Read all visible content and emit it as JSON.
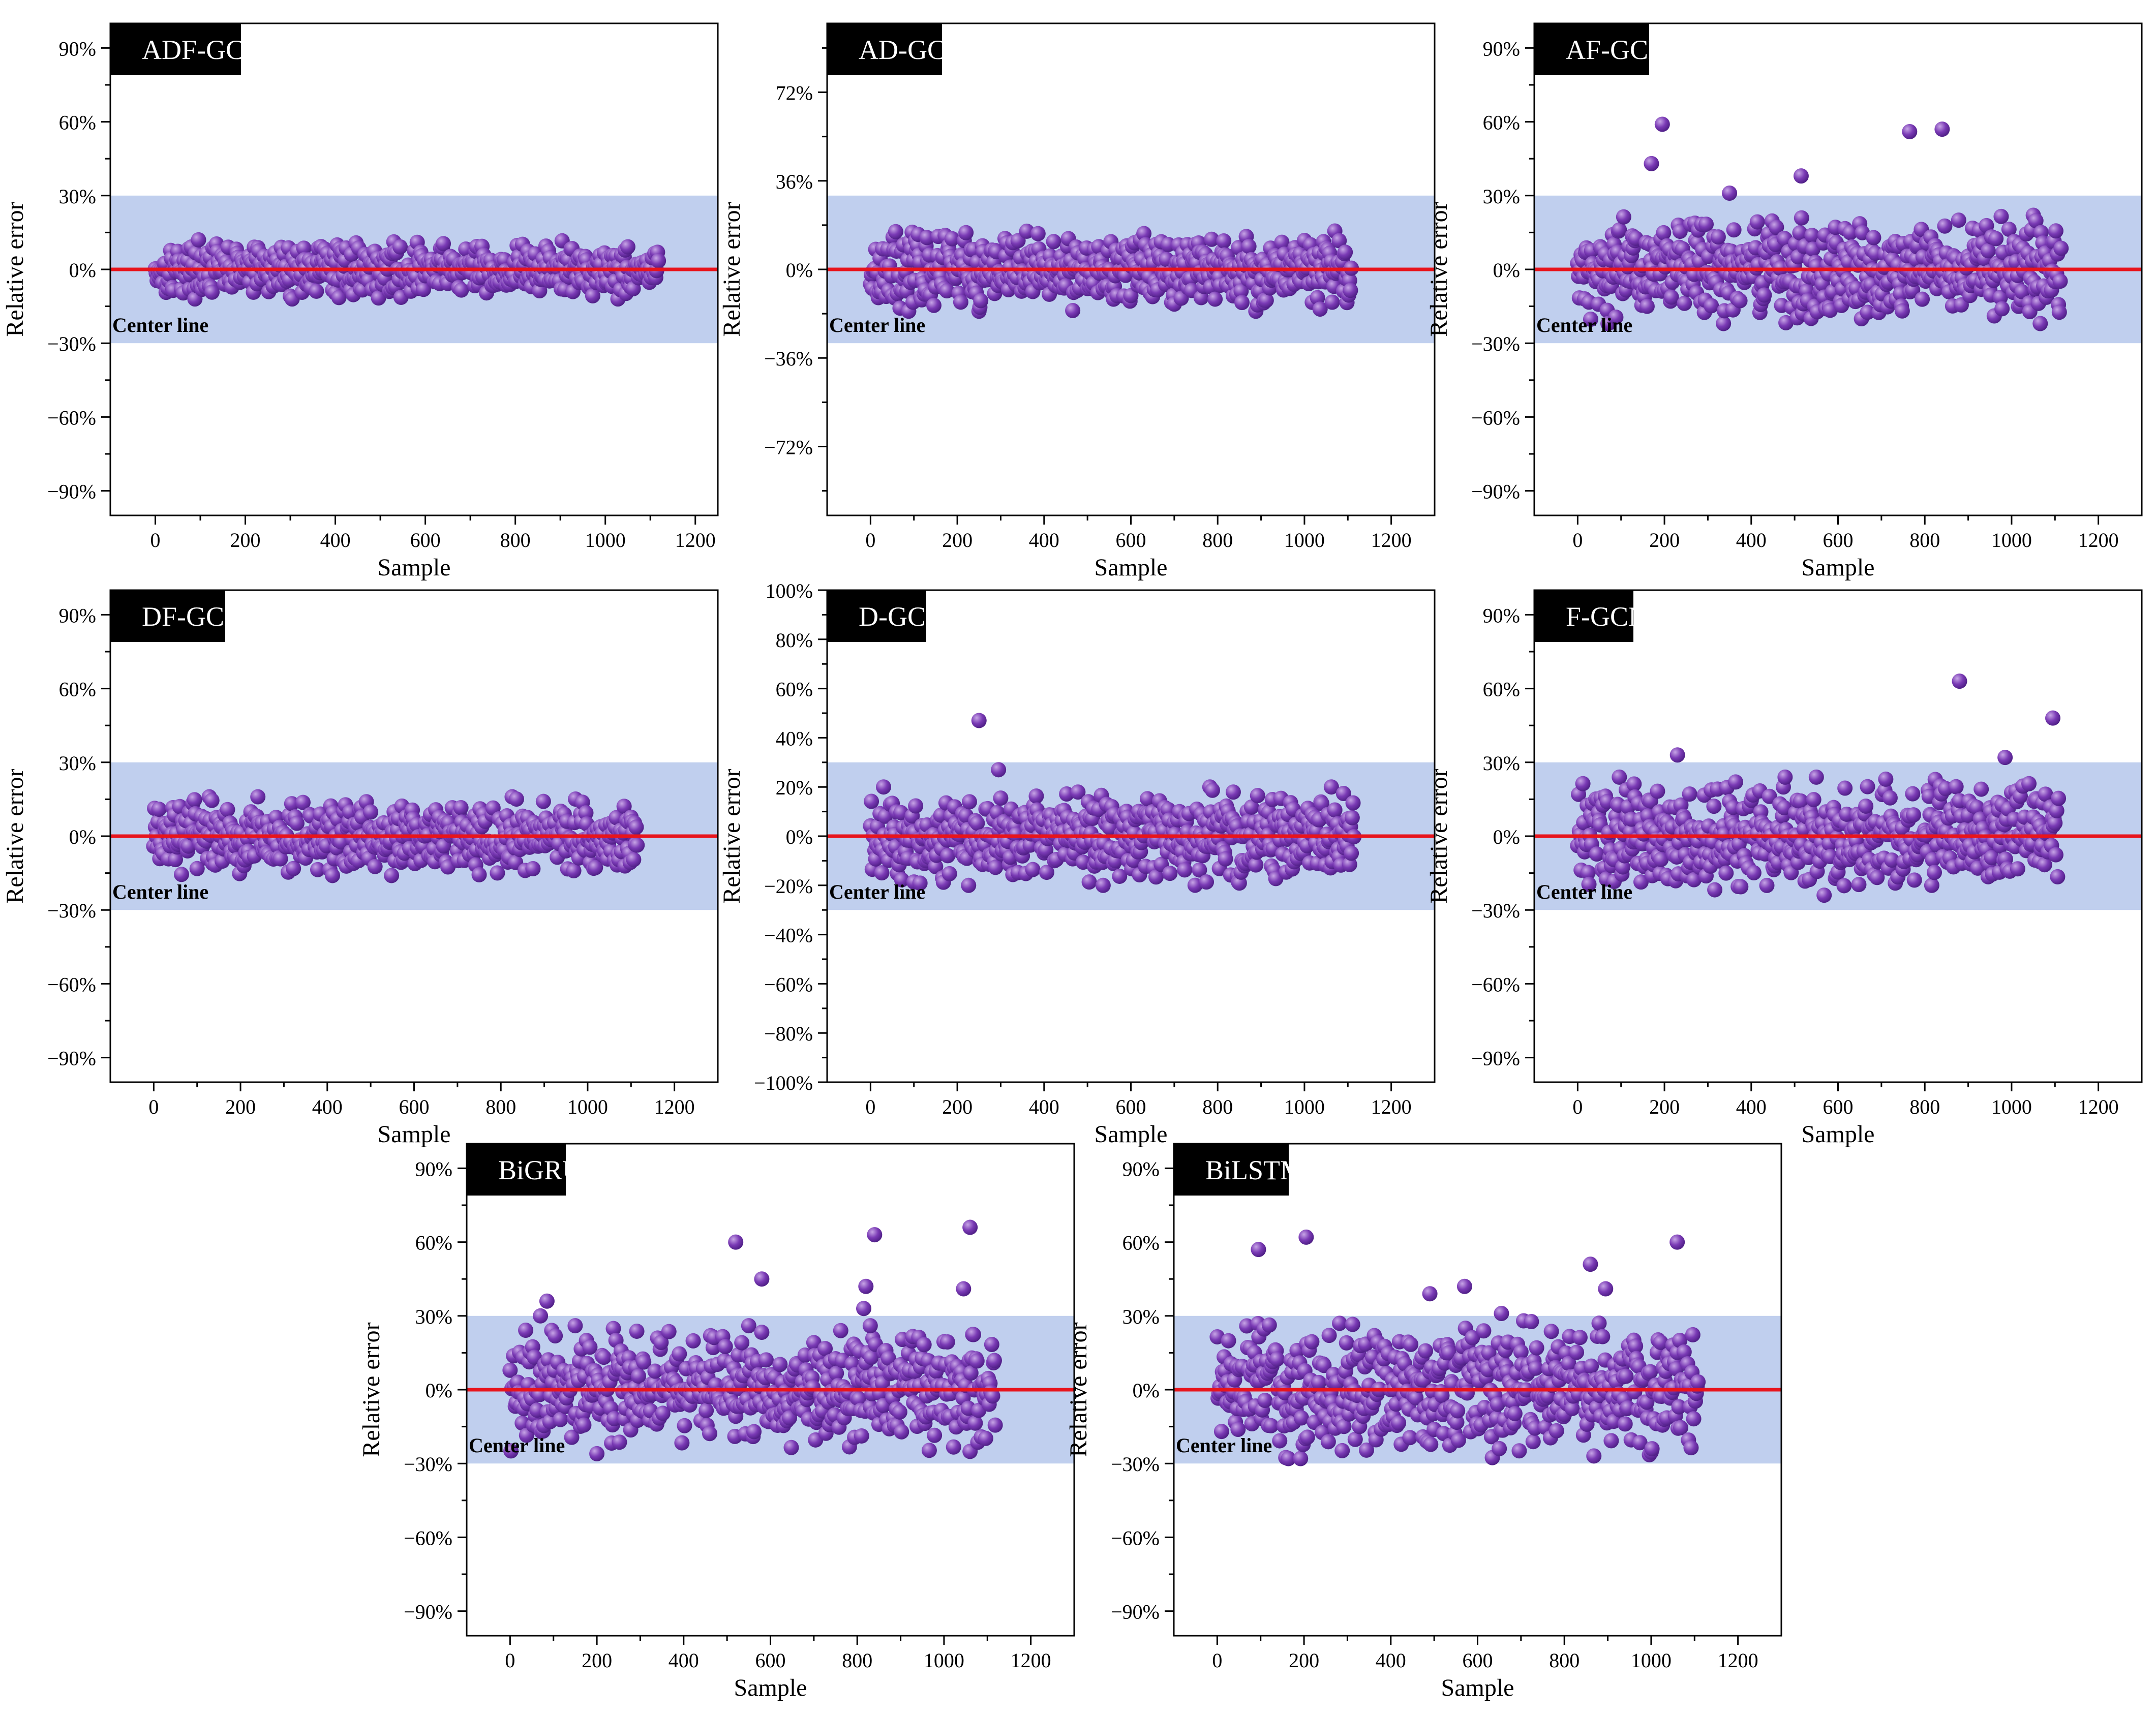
{
  "figure": {
    "colors": {
      "band": "#c0cfee",
      "center_line": "#e8141c",
      "point": "#7a3ab5",
      "point_highlight": "#c7a5e6",
      "label_bg": "#000000",
      "label_text": "#ffffff"
    }
  },
  "chart_data": [
    {
      "type": "scatter",
      "model": "ADF-GCN",
      "xlabel": "Sample",
      "ylabel": "Relative error",
      "xlim": [
        -100,
        1250
      ],
      "x_ticks": [
        0,
        200,
        400,
        600,
        800,
        1000,
        1200
      ],
      "ylim": [
        -100,
        100
      ],
      "y_ticks": [
        -90,
        -60,
        -30,
        0,
        30,
        60,
        90
      ],
      "y_tick_labels": [
        "−90%",
        "−60%",
        "−30%",
        "0%",
        "30%",
        "60%",
        "90%"
      ],
      "band": [
        -30,
        30
      ],
      "center_line": 0,
      "center_line_label": "Center line",
      "n_samples": 1120,
      "error_spread": 12,
      "outliers": []
    },
    {
      "type": "scatter",
      "model": "AD-GCN",
      "xlabel": "Sample",
      "ylabel": "Relative error",
      "xlim": [
        -100,
        1300
      ],
      "x_ticks": [
        0,
        200,
        400,
        600,
        800,
        1000,
        1200
      ],
      "ylim": [
        -100,
        100
      ],
      "y_ticks": [
        -72,
        -36,
        0,
        36,
        72
      ],
      "y_tick_labels": [
        "−72%",
        "−36%",
        "0%",
        "36%",
        "72%"
      ],
      "band": [
        -30,
        30
      ],
      "center_line": 0,
      "center_line_label": "Center line",
      "n_samples": 1110,
      "error_spread": 17,
      "outliers": []
    },
    {
      "type": "scatter",
      "model": "AF-GCN",
      "xlabel": "Sample",
      "ylabel": "Relative error",
      "xlim": [
        -100,
        1300
      ],
      "x_ticks": [
        0,
        200,
        400,
        600,
        800,
        1000,
        1200
      ],
      "ylim": [
        -100,
        100
      ],
      "y_ticks": [
        -90,
        -60,
        -30,
        0,
        30,
        60,
        90
      ],
      "y_tick_labels": [
        "−90%",
        "−60%",
        "−30%",
        "0%",
        "30%",
        "60%",
        "90%"
      ],
      "band": [
        -30,
        30
      ],
      "center_line": 0,
      "center_line_label": "Center line",
      "n_samples": 1115,
      "error_spread": 22,
      "outliers": [
        [
          170,
          43
        ],
        [
          195,
          59
        ],
        [
          350,
          31
        ],
        [
          515,
          38
        ],
        [
          765,
          56
        ],
        [
          840,
          57
        ]
      ]
    },
    {
      "type": "scatter",
      "model": "DF-GCN",
      "xlabel": "Sample",
      "ylabel": "Relative error",
      "xlim": [
        -100,
        1300
      ],
      "x_ticks": [
        0,
        200,
        400,
        600,
        800,
        1000,
        1200
      ],
      "ylim": [
        -100,
        100
      ],
      "y_ticks": [
        -90,
        -60,
        -30,
        0,
        30,
        60,
        90
      ],
      "y_tick_labels": [
        "−90%",
        "−60%",
        "−30%",
        "0%",
        "30%",
        "60%",
        "90%"
      ],
      "band": [
        -30,
        30
      ],
      "center_line": 0,
      "center_line_label": "Center line",
      "n_samples": 1115,
      "error_spread": 16,
      "outliers": []
    },
    {
      "type": "scatter",
      "model": "D-GCN",
      "xlabel": "Sample",
      "ylabel": "Relative error",
      "xlim": [
        -100,
        1300
      ],
      "x_ticks": [
        0,
        200,
        400,
        600,
        800,
        1000,
        1200
      ],
      "ylim": [
        -100,
        100
      ],
      "y_ticks": [
        -100,
        -80,
        -60,
        -40,
        -20,
        0,
        20,
        40,
        60,
        80,
        100
      ],
      "y_tick_labels": [
        "−100%",
        "−80%",
        "−60%",
        "−40%",
        "−20%",
        "0%",
        "20%",
        "40%",
        "60%",
        "80%",
        "100%"
      ],
      "band": [
        -30,
        30
      ],
      "center_line": 0,
      "center_line_label": "Center line",
      "n_samples": 1115,
      "error_spread": 20,
      "outliers": [
        [
          250,
          47
        ],
        [
          295,
          27
        ]
      ]
    },
    {
      "type": "scatter",
      "model": "F-GCN",
      "xlabel": "Sample",
      "ylabel": "Relative error",
      "xlim": [
        -100,
        1300
      ],
      "x_ticks": [
        0,
        200,
        400,
        600,
        800,
        1000,
        1200
      ],
      "ylim": [
        -100,
        100
      ],
      "y_ticks": [
        -90,
        -60,
        -30,
        0,
        30,
        60,
        90
      ],
      "y_tick_labels": [
        "−90%",
        "−60%",
        "−30%",
        "0%",
        "30%",
        "60%",
        "90%"
      ],
      "band": [
        -30,
        30
      ],
      "center_line": 0,
      "center_line_label": "Center line",
      "n_samples": 1110,
      "error_spread": 24,
      "outliers": [
        [
          230,
          33
        ],
        [
          880,
          63
        ],
        [
          985,
          32
        ],
        [
          1095,
          48
        ]
      ]
    },
    {
      "type": "scatter",
      "model": "BiGRU",
      "xlabel": "Sample",
      "ylabel": "Relative error",
      "xlim": [
        -100,
        1300
      ],
      "x_ticks": [
        0,
        200,
        400,
        600,
        800,
        1000,
        1200
      ],
      "ylim": [
        -100,
        100
      ],
      "y_ticks": [
        -90,
        -60,
        -30,
        0,
        30,
        60,
        90
      ],
      "y_tick_labels": [
        "−90%",
        "−60%",
        "−30%",
        "0%",
        "30%",
        "60%",
        "90%"
      ],
      "band": [
        -30,
        30
      ],
      "center_line": 0,
      "center_line_label": "Center line",
      "n_samples": 1120,
      "error_spread": 26,
      "outliers": [
        [
          70,
          30
        ],
        [
          85,
          36
        ],
        [
          520,
          60
        ],
        [
          580,
          45
        ],
        [
          815,
          33
        ],
        [
          820,
          42
        ],
        [
          830,
          26
        ],
        [
          840,
          63
        ],
        [
          1045,
          41
        ],
        [
          1060,
          66
        ]
      ]
    },
    {
      "type": "scatter",
      "model": "BiLSTM",
      "xlabel": "Sample",
      "ylabel": "Relative error",
      "xlim": [
        -100,
        1300
      ],
      "x_ticks": [
        0,
        200,
        400,
        600,
        800,
        1000,
        1200
      ],
      "ylim": [
        -100,
        100
      ],
      "y_ticks": [
        -90,
        -60,
        -30,
        0,
        30,
        60,
        90
      ],
      "y_tick_labels": [
        "−90%",
        "−60%",
        "−30%",
        "0%",
        "30%",
        "60%",
        "90%"
      ],
      "band": [
        -30,
        30
      ],
      "center_line": 0,
      "center_line_label": "Center line",
      "n_samples": 1110,
      "error_spread": 28,
      "outliers": [
        [
          95,
          57
        ],
        [
          205,
          62
        ],
        [
          490,
          39
        ],
        [
          570,
          42
        ],
        [
          655,
          31
        ],
        [
          860,
          51
        ],
        [
          895,
          41
        ],
        [
          1060,
          60
        ]
      ]
    }
  ]
}
